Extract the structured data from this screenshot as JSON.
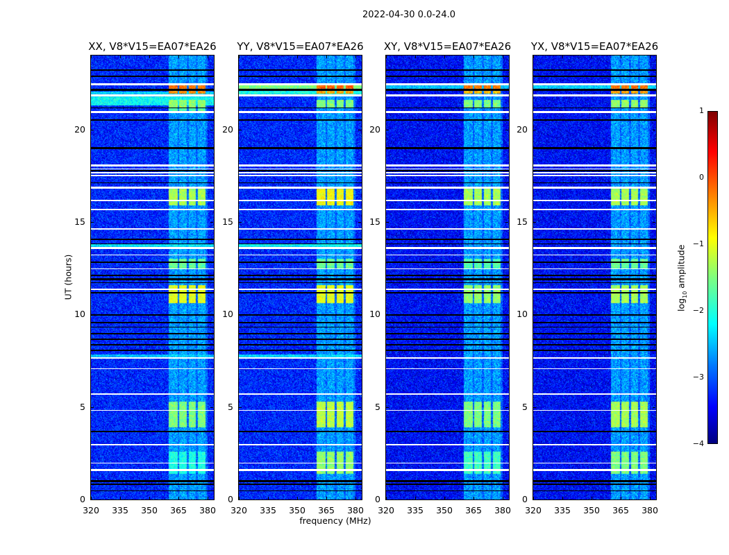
{
  "chart_data": {
    "type": "heatmap",
    "title": "2022-04-30 0.0-24.0",
    "xlabel": "frequency (MHz)",
    "ylabel": "UT (hours)",
    "xlim": [
      320,
      383.2
    ],
    "ylim": [
      0,
      24
    ],
    "xticks": [
      "320",
      "335",
      "350",
      "365",
      "380"
    ],
    "yticks": [
      "0",
      "5",
      "10",
      "15",
      "20"
    ],
    "colorbar": {
      "label_main": "log",
      "label_sub": "10",
      "label_rest": " amplitude",
      "range": [
        -4,
        1
      ],
      "ticks": [
        "1",
        "0",
        "−1",
        "−2",
        "−3",
        "−4"
      ],
      "cmap": "jet"
    },
    "rfi_subbands_mhz": [
      [
        360,
        364.5
      ],
      [
        365.5,
        369.2
      ],
      [
        370.2,
        373.8
      ],
      [
        375,
        379
      ]
    ],
    "flagged_white_hours": [
      [
        22.4,
        22.5
      ],
      [
        21.8,
        21.9
      ],
      [
        20.9,
        21.0
      ],
      [
        18.0,
        18.1
      ],
      [
        17.85,
        17.9
      ],
      [
        17.65,
        17.7
      ],
      [
        17.5,
        17.55
      ],
      [
        16.8,
        16.9
      ],
      [
        16.15,
        16.2
      ],
      [
        15.65,
        15.7
      ],
      [
        14.6,
        14.65
      ],
      [
        13.55,
        13.65
      ],
      [
        13.2,
        13.25
      ],
      [
        12.45,
        12.5
      ],
      [
        11.35,
        11.4
      ],
      [
        7.6,
        7.7
      ],
      [
        7.05,
        7.1
      ],
      [
        5.65,
        5.75
      ],
      [
        4.8,
        4.85
      ],
      [
        2.95,
        3.0
      ],
      [
        1.95,
        2.0
      ],
      [
        1.55,
        1.65
      ]
    ],
    "flagged_black_hours": [
      [
        23.2,
        23.25
      ],
      [
        22.85,
        22.9
      ],
      [
        22.1,
        22.2
      ],
      [
        21.15,
        21.2
      ],
      [
        20.5,
        20.55
      ],
      [
        18.95,
        19.05
      ],
      [
        17.75,
        17.8
      ],
      [
        17.1,
        17.15
      ],
      [
        14.05,
        14.1
      ],
      [
        13.8,
        13.85
      ],
      [
        12.8,
        12.85
      ],
      [
        12.1,
        12.15
      ],
      [
        11.85,
        11.95
      ],
      [
        11.7,
        11.75
      ],
      [
        11.15,
        11.2
      ],
      [
        9.95,
        10.0
      ],
      [
        9.55,
        9.6
      ],
      [
        9.3,
        9.35
      ],
      [
        8.95,
        9.0
      ],
      [
        8.65,
        8.7
      ],
      [
        8.35,
        8.4
      ],
      [
        8.05,
        8.1
      ],
      [
        3.65,
        3.7
      ],
      [
        0.95,
        1.05
      ],
      [
        0.8,
        0.85
      ],
      [
        0.45,
        0.5
      ]
    ],
    "panels": [
      {
        "title": "XX, V8*V15=EA07*EA26",
        "base_level": -3.2,
        "wide_rows": [
          [
            21.3,
            21.8,
            -2.1
          ],
          [
            21.9,
            22.05,
            -2.3
          ],
          [
            13.65,
            13.8,
            -2.2
          ],
          [
            7.7,
            7.85,
            -2.4
          ]
        ],
        "rfi_episodes": [
          [
            22.2,
            22.4,
            -0.2
          ],
          [
            21.95,
            22.1,
            -0.3
          ],
          [
            21.2,
            21.6,
            -1.4
          ],
          [
            21.0,
            21.15,
            -1.7
          ],
          [
            15.9,
            16.8,
            -1.3
          ],
          [
            12.5,
            13.0,
            -1.6
          ],
          [
            10.6,
            11.6,
            -1.0
          ],
          [
            3.9,
            5.3,
            -1.5
          ],
          [
            1.4,
            2.6,
            -2.0
          ]
        ]
      },
      {
        "title": "YY, V8*V15=EA07*EA26",
        "base_level": -3.2,
        "wide_rows": [
          [
            22.2,
            22.45,
            -1.5
          ],
          [
            21.9,
            22.1,
            -2.0
          ],
          [
            13.65,
            13.85,
            -2.1
          ],
          [
            7.7,
            7.85,
            -2.3
          ]
        ],
        "rfi_episodes": [
          [
            22.2,
            22.45,
            -0.1
          ],
          [
            21.95,
            22.1,
            -0.4
          ],
          [
            21.2,
            21.6,
            -1.5
          ],
          [
            15.9,
            16.8,
            -0.9
          ],
          [
            12.5,
            13.0,
            -1.6
          ],
          [
            10.6,
            11.6,
            -1.0
          ],
          [
            3.9,
            5.3,
            -1.2
          ],
          [
            1.4,
            2.6,
            -1.4
          ]
        ]
      },
      {
        "title": "XY, V8*V15=EA07*EA26",
        "base_level": -3.35,
        "wide_rows": [
          [
            22.2,
            22.4,
            -2.4
          ]
        ],
        "rfi_episodes": [
          [
            22.2,
            22.4,
            -0.2
          ],
          [
            21.95,
            22.1,
            -0.5
          ],
          [
            21.2,
            21.6,
            -1.5
          ],
          [
            15.9,
            16.8,
            -1.3
          ],
          [
            12.5,
            13.0,
            -1.7
          ],
          [
            10.6,
            11.6,
            -1.4
          ],
          [
            3.9,
            5.3,
            -1.5
          ],
          [
            1.4,
            2.6,
            -1.8
          ]
        ]
      },
      {
        "title": "YX, V8*V15=EA07*EA26",
        "base_level": -3.35,
        "wide_rows": [
          [
            22.2,
            22.4,
            -2.3
          ]
        ],
        "rfi_episodes": [
          [
            22.2,
            22.4,
            -0.2
          ],
          [
            21.95,
            22.1,
            -0.4
          ],
          [
            21.2,
            21.6,
            -1.4
          ],
          [
            15.9,
            16.8,
            -1.3
          ],
          [
            12.5,
            13.0,
            -1.6
          ],
          [
            10.6,
            11.6,
            -1.3
          ],
          [
            3.9,
            5.3,
            -1.3
          ],
          [
            1.4,
            2.6,
            -1.5
          ]
        ]
      }
    ]
  }
}
